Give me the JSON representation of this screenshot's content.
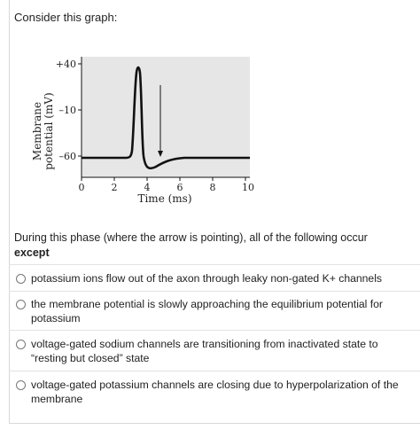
{
  "question": {
    "intro": "Consider this graph:",
    "prompt_before": "During this phase (where the arrow is pointing), all of the following occur ",
    "prompt_emphasis": "except"
  },
  "graph": {
    "ylabel_line1": "Membrane",
    "ylabel_line2": "potential (mV)",
    "xlabel": "Time (ms)",
    "y_ticks": [
      "+40",
      "–10",
      "–60"
    ],
    "x_ticks": [
      "0",
      "2",
      "4",
      "6",
      "8",
      "10"
    ],
    "colors": {
      "plot_bg": "#e6e6e6",
      "trace": "#111111"
    }
  },
  "options": [
    {
      "label": "potassium ions flow out of the axon through leaky non-gated K+ channels"
    },
    {
      "label": "the membrane potential is slowly approaching the equilibrium potential for potassium"
    },
    {
      "label": "voltage-gated sodium channels are transitioning from inactivated state to “resting but closed” state"
    },
    {
      "label": "voltage-gated potassium channels are closing due to hyperpolarization of the membrane"
    }
  ]
}
